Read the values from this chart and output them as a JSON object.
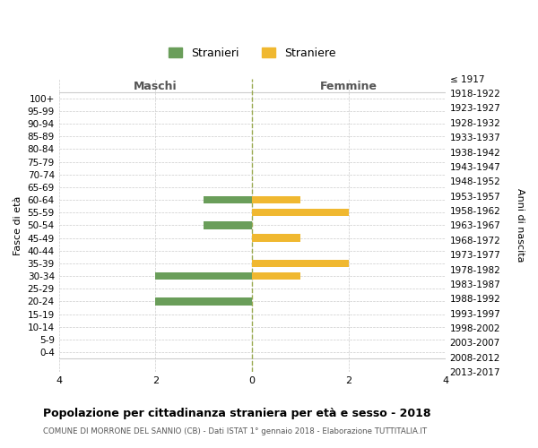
{
  "age_groups": [
    "100+",
    "95-99",
    "90-94",
    "85-89",
    "80-84",
    "75-79",
    "70-74",
    "65-69",
    "60-64",
    "55-59",
    "50-54",
    "45-49",
    "40-44",
    "35-39",
    "30-34",
    "25-29",
    "20-24",
    "15-19",
    "10-14",
    "5-9",
    "0-4"
  ],
  "birth_years": [
    "≤ 1917",
    "1918-1922",
    "1923-1927",
    "1928-1932",
    "1933-1937",
    "1938-1942",
    "1943-1947",
    "1948-1952",
    "1953-1957",
    "1958-1962",
    "1963-1967",
    "1968-1972",
    "1973-1977",
    "1978-1982",
    "1983-1987",
    "1988-1992",
    "1993-1997",
    "1998-2002",
    "2003-2007",
    "2008-2012",
    "2013-2017"
  ],
  "males": [
    0,
    0,
    0,
    0,
    0,
    0,
    0,
    0,
    -1,
    0,
    -1,
    0,
    0,
    0,
    -2,
    0,
    -2,
    0,
    0,
    0,
    0
  ],
  "females": [
    0,
    0,
    0,
    0,
    0,
    0,
    0,
    0,
    1,
    2,
    0,
    1,
    0,
    2,
    1,
    0,
    0,
    0,
    0,
    0,
    0
  ],
  "male_color": "#6a9e5a",
  "female_color": "#f0b830",
  "grid_color": "#cccccc",
  "center_line_color": "#9aaa50",
  "xlim": [
    -4,
    4
  ],
  "xticks": [
    -4,
    -2,
    0,
    2,
    4
  ],
  "xticklabels": [
    "4",
    "2",
    "0",
    "2",
    "4"
  ],
  "title": "Popolazione per cittadinanza straniera per età e sesso - 2018",
  "subtitle": "COMUNE DI MORRONE DEL SANNIO (CB) - Dati ISTAT 1° gennaio 2018 - Elaborazione TUTTITALIA.IT",
  "ylabel_left": "Fasce di età",
  "ylabel_right": "Anni di nascita",
  "header_left": "Maschi",
  "header_right": "Femmine",
  "legend_stranieri": "Stranieri",
  "legend_straniere": "Straniere"
}
